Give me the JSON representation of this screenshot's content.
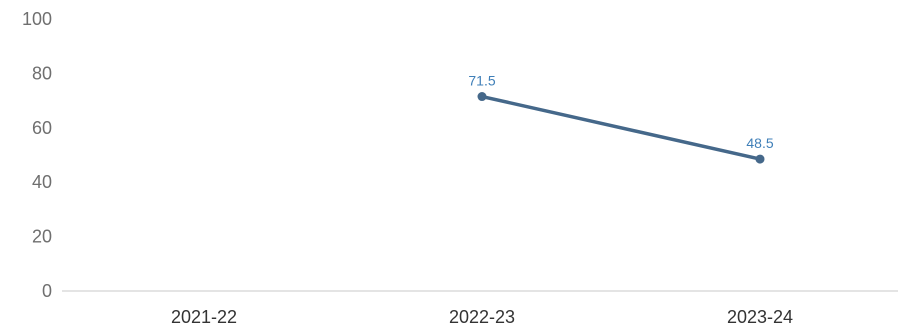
{
  "chart_data": {
    "type": "line",
    "categories": [
      "2021-22",
      "2022-23",
      "2023-24"
    ],
    "values": [
      null,
      71.5,
      48.5
    ],
    "data_labels": [
      "",
      "71.5",
      "48.5"
    ],
    "ylim": [
      0,
      100
    ],
    "yticks": [
      0,
      20,
      40,
      60,
      80,
      100
    ],
    "ytick_labels": [
      "0",
      "20",
      "40",
      "60",
      "80",
      "100"
    ],
    "grid": false,
    "line_color": "#45688a",
    "label_color": "#3f7fb8",
    "axis_color": "#c8c8c8"
  }
}
